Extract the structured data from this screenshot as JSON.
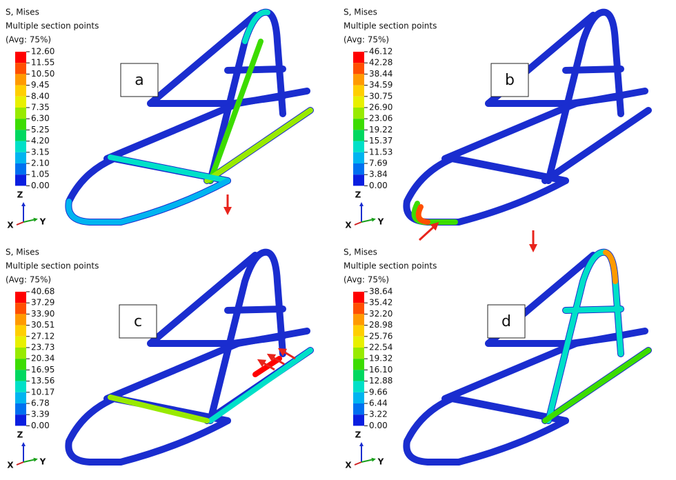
{
  "panels": [
    {
      "label": "a",
      "title": "S, Mises",
      "subtitle": "Multiple section points",
      "average": "(Avg: 75%)",
      "legend": [
        "12.60",
        "11.55",
        "10.50",
        "9.45",
        "8.40",
        "7.35",
        "6.30",
        "5.25",
        "4.20",
        "3.15",
        "2.10",
        "1.05",
        "0.00"
      ],
      "axes": {
        "z": "Z",
        "x": "X",
        "y": "Y"
      }
    },
    {
      "label": "b",
      "title": "S, Mises",
      "subtitle": "Multiple section points",
      "average": "(Avg: 75%)",
      "legend": [
        "46.12",
        "42.28",
        "38.44",
        "34.59",
        "30.75",
        "26.90",
        "23.06",
        "19.22",
        "15.37",
        "11.53",
        "7.69",
        "3.84",
        "0.00"
      ],
      "axes": {
        "z": "Z",
        "x": "X",
        "y": "Y"
      }
    },
    {
      "label": "c",
      "title": "S, Mises",
      "subtitle": "Multiple section points",
      "average": "(Avg: 75%)",
      "legend": [
        "40.68",
        "37.29",
        "33.90",
        "30.51",
        "27.12",
        "23.73",
        "20.34",
        "16.95",
        "13.56",
        "10.17",
        "6.78",
        "3.39",
        "0.00"
      ],
      "axes": {
        "z": "Z",
        "x": "X",
        "y": "Y"
      }
    },
    {
      "label": "d",
      "title": "S, Mises",
      "subtitle": "Multiple section points",
      "average": "(Avg: 75%)",
      "legend": [
        "38.64",
        "35.42",
        "32.20",
        "28.98",
        "25.76",
        "22.54",
        "19.32",
        "16.10",
        "12.88",
        "9.66",
        "6.44",
        "3.22",
        "0.00"
      ],
      "axes": {
        "z": "Z",
        "x": "X",
        "y": "Y"
      }
    }
  ]
}
